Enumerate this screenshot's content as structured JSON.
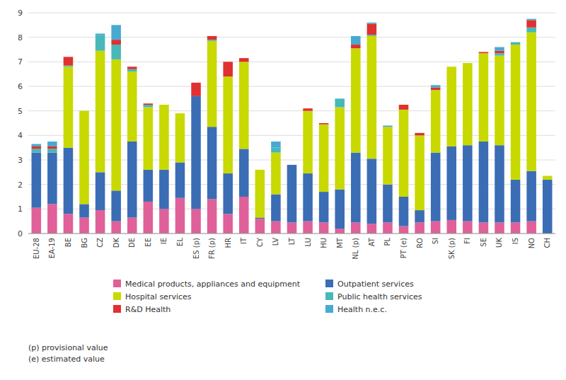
{
  "chart_data": {
    "type": "bar",
    "stacked": true,
    "categories": [
      "EU-28",
      "EA-19",
      "BE",
      "BG",
      "CZ",
      "DK",
      "DE",
      "EE",
      "IE",
      "EL",
      "ES (p)",
      "FR (p)",
      "HR",
      "IT",
      "CY",
      "LV",
      "LT",
      "LU",
      "HU",
      "MT",
      "NL (p)",
      "AT",
      "PL",
      "PT (e)",
      "RO",
      "SI",
      "SK (p)",
      "FI",
      "SE",
      "UK",
      "IS",
      "NO",
      "CH"
    ],
    "series": [
      {
        "name": "Medical products, appliances and equipment",
        "color": "#e0609a",
        "values": [
          1.05,
          1.2,
          0.8,
          0.65,
          0.95,
          0.5,
          0.65,
          1.3,
          1.0,
          1.45,
          1.0,
          1.4,
          0.8,
          1.5,
          0.6,
          0.5,
          0.45,
          0.5,
          0.45,
          0.2,
          0.45,
          0.4,
          0.45,
          0.3,
          0.45,
          0.5,
          0.55,
          0.5,
          0.45,
          0.45,
          0.45,
          0.5,
          0.0
        ]
      },
      {
        "name": "Outpatient services",
        "color": "#3b6db5",
        "values": [
          2.25,
          2.1,
          2.7,
          0.55,
          1.55,
          1.25,
          3.1,
          1.3,
          1.6,
          1.45,
          4.6,
          2.95,
          1.65,
          1.95,
          0.05,
          1.1,
          2.35,
          1.95,
          1.25,
          1.6,
          2.85,
          2.65,
          1.55,
          1.2,
          0.5,
          2.8,
          3.0,
          3.1,
          3.3,
          3.15,
          1.75,
          2.05,
          2.2
        ]
      },
      {
        "name": "Hospital services",
        "color": "#c8d900",
        "values": [
          0.0,
          0.0,
          3.3,
          3.8,
          4.95,
          5.35,
          2.85,
          2.55,
          2.65,
          2.0,
          0.0,
          3.5,
          3.95,
          3.55,
          1.95,
          1.7,
          0.0,
          2.55,
          2.75,
          3.35,
          4.25,
          5.0,
          2.35,
          3.55,
          3.05,
          2.55,
          3.25,
          3.35,
          3.6,
          3.65,
          5.5,
          5.65,
          0.15
        ]
      },
      {
        "name": "Public health services",
        "color": "#48b8b8",
        "values": [
          0.15,
          0.15,
          0.05,
          0.0,
          0.65,
          0.6,
          0.1,
          0.1,
          0.0,
          0.0,
          0.0,
          0.05,
          0.0,
          0.0,
          0.0,
          0.2,
          0.0,
          0.0,
          0.0,
          0.35,
          0.0,
          0.05,
          0.0,
          0.0,
          0.0,
          0.0,
          0.0,
          0.0,
          0.0,
          0.1,
          0.1,
          0.2,
          0.0
        ]
      },
      {
        "name": "R&D Health",
        "color": "#e03030",
        "values": [
          0.1,
          0.1,
          0.35,
          0.0,
          0.0,
          0.2,
          0.1,
          0.05,
          0.0,
          0.0,
          0.55,
          0.15,
          0.6,
          0.15,
          0.0,
          0.0,
          0.0,
          0.1,
          0.05,
          0.0,
          0.15,
          0.45,
          0.0,
          0.2,
          0.1,
          0.1,
          0.0,
          0.0,
          0.05,
          0.1,
          0.0,
          0.3,
          0.0
        ]
      },
      {
        "name": "Health n.e.c.",
        "color": "#48aad0",
        "values": [
          0.1,
          0.2,
          0.0,
          0.0,
          0.05,
          0.6,
          0.0,
          0.0,
          0.0,
          0.0,
          0.0,
          0.0,
          0.0,
          0.0,
          0.0,
          0.25,
          0.0,
          0.0,
          0.0,
          0.0,
          0.35,
          0.05,
          0.05,
          0.0,
          0.0,
          0.1,
          0.0,
          0.0,
          0.0,
          0.15,
          0.0,
          0.05,
          0.0
        ]
      }
    ],
    "ylim": [
      0,
      9
    ],
    "yticks": [
      0,
      1,
      2,
      3,
      4,
      5,
      6,
      7,
      8,
      9
    ],
    "grid": true,
    "legend": "bottom",
    "annotations": [
      "(p) provisional value",
      "(e) estimated value"
    ]
  }
}
